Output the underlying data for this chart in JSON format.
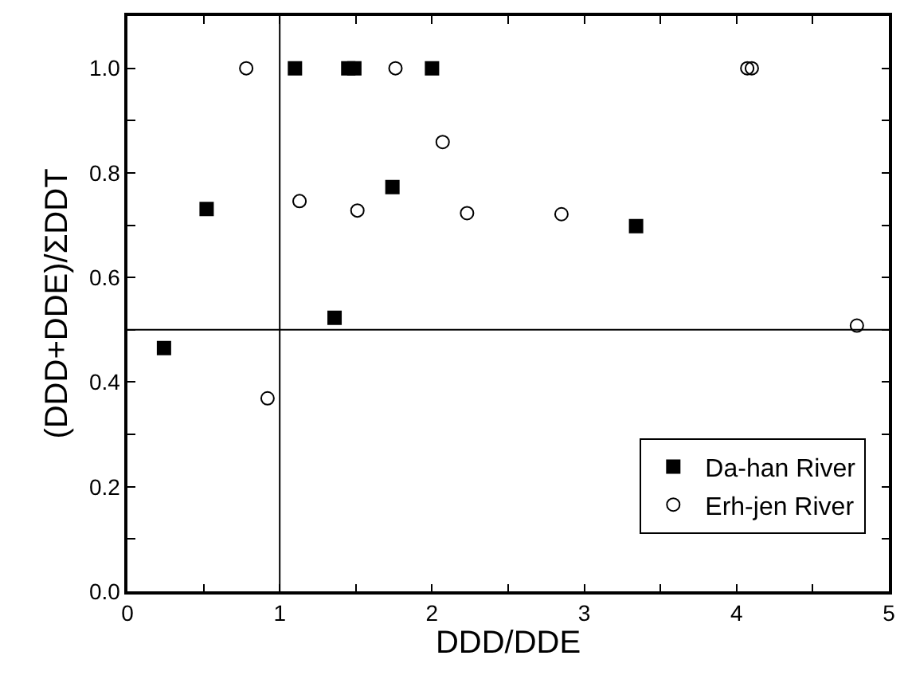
{
  "chart_data": {
    "type": "scatter",
    "xlabel": "DDD/DDE",
    "ylabel": "(DDD+DDE)/ΣDDT",
    "xlim": [
      0,
      5
    ],
    "ylim": [
      0,
      1.1
    ],
    "xticks": [
      0,
      {
        "value": 0.5,
        "label": null
      },
      1,
      {
        "value": 1.5,
        "label": null
      },
      2,
      {
        "value": 2.5,
        "label": null
      },
      3,
      {
        "value": 3.5,
        "label": null
      },
      4,
      {
        "value": 4.5,
        "label": null
      },
      5
    ],
    "yticks": [
      "0.0",
      {
        "value": 0.1,
        "label": null
      },
      {
        "value": 0.2,
        "label": "0.2"
      },
      {
        "value": 0.3,
        "label": null
      },
      {
        "value": 0.4,
        "label": "0.4"
      },
      {
        "value": 0.5,
        "label": null
      },
      {
        "value": 0.6,
        "label": "0.6"
      },
      {
        "value": 0.7,
        "label": null
      },
      {
        "value": 0.8,
        "label": "0.8"
      },
      {
        "value": 0.9,
        "label": null
      },
      {
        "value": 1.0,
        "label": "1.0"
      }
    ],
    "legend": "bottom right",
    "ref_lines": [
      {
        "axis": "x",
        "value": 1,
        "color": "#000000"
      },
      {
        "axis": "y",
        "value": 0.5,
        "color": "#000000"
      }
    ],
    "series": [
      {
        "name": "Da-han River",
        "color": "#000000",
        "marker": "square",
        "x": [
          0.24,
          0.52,
          1.1,
          1.45,
          1.49,
          1.36,
          1.74,
          2.0,
          3.34
        ],
        "values": [
          0.465,
          0.731,
          1.0,
          1.0,
          1.0,
          0.523,
          0.773,
          1.0,
          0.698
        ]
      },
      {
        "name": "Erh-jen River",
        "color": "#000000",
        "marker": "circle-open",
        "x": [
          0.78,
          0.92,
          1.13,
          1.51,
          1.76,
          2.07,
          2.23,
          2.85,
          4.07,
          4.1,
          4.79
        ],
        "values": [
          1.0,
          0.369,
          0.746,
          0.728,
          1.0,
          0.859,
          0.723,
          0.721,
          1.0,
          1.0,
          0.508
        ]
      }
    ]
  }
}
